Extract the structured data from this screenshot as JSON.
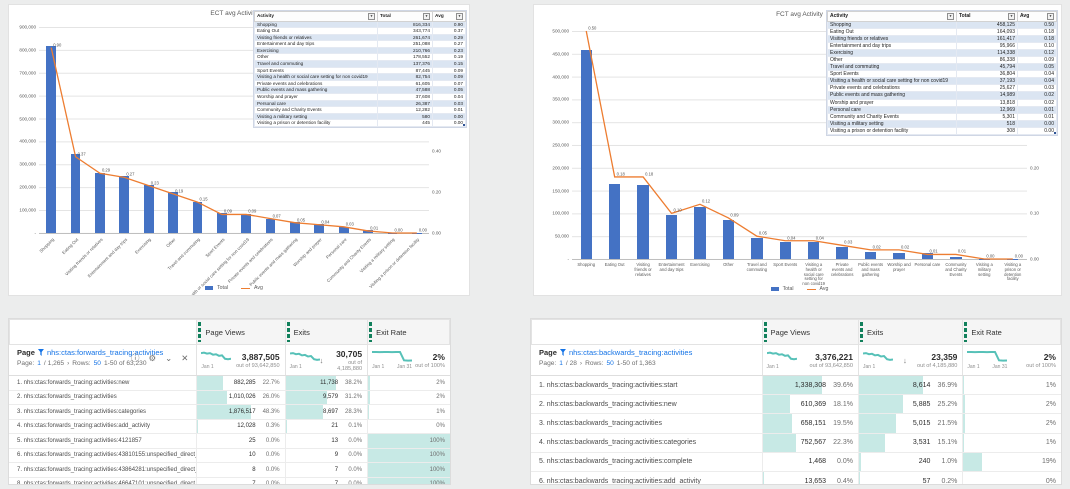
{
  "chart_data": [
    {
      "type": "bar",
      "title": "ECT avg Activity",
      "categories": [
        "Shopping",
        "Eating Out",
        "Visiting friends or relatives",
        "Entertainment and day trips",
        "Exercising",
        "Other",
        "Travel and commuting",
        "Sport Events",
        "Visiting a health or social care setting for non covid19",
        "Private events and celebrations",
        "Public events and mass gathering",
        "Worship and prayer",
        "Personal care",
        "Community and Charity Events",
        "Visiting a military setting",
        "Visiting a prison or detention facility"
      ],
      "series": [
        {
          "name": "Total",
          "type": "bar",
          "values": [
            816334,
            343774,
            261674,
            251088,
            210766,
            178552,
            137376,
            87445,
            82754,
            61605,
            47588,
            37608,
            26387,
            12282,
            580,
            445
          ]
        },
        {
          "name": "Avg",
          "type": "line",
          "values": [
            0.9,
            0.37,
            0.29,
            0.27,
            0.23,
            0.19,
            0.15,
            0.09,
            0.09,
            0.07,
            0.05,
            0.04,
            0.03,
            0.01,
            0.0,
            0.0
          ]
        }
      ],
      "ylim": [
        0,
        900000
      ],
      "y2lim": [
        0,
        1.0
      ],
      "y_ticks": [
        "900,000",
        "800,000",
        "700,000",
        "600,000",
        "500,000",
        "400,000",
        "300,000",
        "200,000",
        "100,000",
        "-"
      ],
      "y2_ticks": [
        "1.00",
        "0.80",
        "0.60",
        "0.40",
        "0.20",
        "0.00"
      ],
      "grid": true,
      "legend_position": "bottom",
      "x_rotate": true,
      "table_headers": [
        "Activity",
        "Total",
        "Avg"
      ]
    },
    {
      "type": "bar",
      "title": "FCT avg Activity",
      "categories": [
        "Shopping",
        "Eating Out",
        "Visiting friends or relatives",
        "Entertainment and day trips",
        "Exercising",
        "Other",
        "Travel and commuting",
        "Sport Events",
        "Visiting a health or social care setting for non covid19",
        "Private events and celebrations",
        "Public events and mass gathering",
        "Worship and prayer",
        "Personal care",
        "Community and Charity Events",
        "Visiting a military setting",
        "Visiting a prison or detention facility"
      ],
      "series": [
        {
          "name": "Total",
          "type": "bar",
          "values": [
            458125,
            164093,
            161417,
            95966,
            114338,
            86338,
            45794,
            36804,
            37193,
            25627,
            14989,
            13818,
            12969,
            5301,
            518,
            308
          ]
        },
        {
          "name": "Avg",
          "type": "line",
          "values": [
            0.5,
            0.18,
            0.18,
            0.1,
            0.12,
            0.09,
            0.05,
            0.04,
            0.04,
            0.03,
            0.02,
            0.02,
            0.01,
            0.01,
            0.0,
            0.0
          ]
        }
      ],
      "ylim": [
        0,
        500000
      ],
      "y2lim": [
        0,
        0.5
      ],
      "y_ticks": [
        "500,000",
        "450,000",
        "400,000",
        "350,000",
        "300,000",
        "250,000",
        "200,000",
        "150,000",
        "100,000",
        "50,000",
        "-"
      ],
      "y2_ticks": [
        "0.50",
        "0.40",
        "0.30",
        "0.20",
        "0.10",
        "0.00"
      ],
      "grid": true,
      "legend_position": "bottom",
      "x_rotate": false,
      "table_headers": [
        "Activity",
        "Total",
        "Avg"
      ]
    }
  ],
  "aa_tables": [
    {
      "page_label": "Page",
      "page_link": "nhs:ctas:forwards_tracing:activities",
      "pagination": {
        "label": "Page:",
        "num": "1",
        "total": "/ 1,265",
        "arrow": "›",
        "rows_label": "Rows:",
        "rows_num": "50",
        "range": "1-50 of 63,230"
      },
      "icons": {
        "info": "ⓘ",
        "gear": "⚙",
        "chevron": "⌄",
        "close": "✕"
      },
      "columns": [
        {
          "label": "Page Views",
          "total": "3,887,505",
          "out_of": "out of 93,642,850",
          "dates": [
            "Jan 1"
          ],
          "sorted": false,
          "spark": [
            8,
            8.4,
            7.6,
            8,
            6.6,
            7,
            5.6,
            6,
            3,
            2.6,
            3
          ]
        },
        {
          "label": "Exits",
          "total": "30,705",
          "out_of": "out of 4,185,880",
          "dates": [
            "Jan 1"
          ],
          "sorted": true,
          "spark": [
            7.6,
            8,
            7,
            7.4,
            6,
            6.4,
            5,
            5.4,
            2.6,
            2,
            2.4
          ]
        },
        {
          "label": "Exit Rate",
          "total": "2%",
          "out_of": "out of 100%",
          "dates": [
            "Jan 1",
            "Jan 31"
          ],
          "sorted": false,
          "spark": [
            9,
            9,
            8.9,
            9,
            9,
            8.9,
            9,
            9,
            1.6,
            1.4,
            1.5
          ]
        }
      ],
      "rows": [
        {
          "name": "1. nhs:ctas:forwards_tracing:activities:new",
          "pv": "882,285",
          "pv_pct": "22.7%",
          "ex": "11,738",
          "ex_pct": "38.2%",
          "er": "2%"
        },
        {
          "name": "2. nhs:ctas:forwards_tracing:activities",
          "pv": "1,010,026",
          "pv_pct": "26.0%",
          "ex": "9,579",
          "ex_pct": "31.2%",
          "er": "2%"
        },
        {
          "name": "3. nhs:ctas:forwards_tracing:activities:categories",
          "pv": "1,876,517",
          "pv_pct": "48.3%",
          "ex": "8,697",
          "ex_pct": "28.3%",
          "er": "1%"
        },
        {
          "name": "4. nhs:ctas:forwards_tracing:activities:add_activity",
          "pv": "12,028",
          "pv_pct": "0.3%",
          "ex": "21",
          "ex_pct": "0.1%",
          "er": "0%"
        },
        {
          "name": "5. nhs:ctas:forwards_tracing:activities:4121857",
          "pv": "25",
          "pv_pct": "0.0%",
          "ex": "13",
          "ex_pct": "0.0%",
          "er": "100%"
        },
        {
          "name": "6. nhs:ctas:forwards_tracing:activities:43810155:unspecified_direct_contacts",
          "pv": "10",
          "pv_pct": "0.0%",
          "ex": "9",
          "ex_pct": "0.0%",
          "er": "100%"
        },
        {
          "name": "7. nhs:ctas:forwards_tracing:activities:43864281:unspecified_direct_conta..",
          "pv": "8",
          "pv_pct": "0.0%",
          "ex": "7",
          "ex_pct": "0.0%",
          "er": "100%"
        },
        {
          "name": "8. nhs:ctas:forwards_tracing:activities:46647101:unspecified_direct_conta..",
          "pv": "7",
          "pv_pct": "0.0%",
          "ex": "7",
          "ex_pct": "0.0%",
          "er": "100%"
        }
      ]
    },
    {
      "page_label": "Page",
      "page_link": "nhs:ctas:backwards_tracing:activities",
      "pagination": {
        "label": "Page:",
        "num": "1",
        "total": "/ 28",
        "arrow": "›",
        "rows_label": "Rows:",
        "rows_num": "50",
        "range": "1-50 of 1,363"
      },
      "columns": [
        {
          "label": "Page Views",
          "total": "3,376,221",
          "out_of": "out of 93,642,850",
          "dates": [
            "Jan 1"
          ],
          "sorted": false,
          "spark": [
            8,
            8.4,
            7.6,
            8,
            6.6,
            7,
            5.6,
            6,
            3,
            2.6,
            3
          ]
        },
        {
          "label": "Exits",
          "total": "23,359",
          "out_of": "out of 4,185,880",
          "dates": [
            "Jan 1"
          ],
          "sorted": true,
          "spark": [
            7.6,
            8,
            7,
            7.4,
            6,
            6.4,
            5,
            5.4,
            2.6,
            2,
            2.4
          ]
        },
        {
          "label": "Exit Rate",
          "total": "2%",
          "out_of": "out of 100%",
          "dates": [
            "Jan 1",
            "Jan 31"
          ],
          "sorted": false,
          "spark": [
            9,
            9,
            8.9,
            9,
            9,
            8.9,
            9,
            9,
            1.6,
            1.4,
            1.5
          ]
        }
      ],
      "rows": [
        {
          "name": "1. nhs:ctas:backwards_tracing:activities:start",
          "pv": "1,338,308",
          "pv_pct": "39.6%",
          "ex": "8,614",
          "ex_pct": "36.9%",
          "er": "1%"
        },
        {
          "name": "2. nhs:ctas:backwards_tracing:activities:new",
          "pv": "610,369",
          "pv_pct": "18.1%",
          "ex": "5,885",
          "ex_pct": "25.2%",
          "er": "2%"
        },
        {
          "name": "3. nhs:ctas:backwards_tracing:activities",
          "pv": "658,151",
          "pv_pct": "19.5%",
          "ex": "5,015",
          "ex_pct": "21.5%",
          "er": "2%"
        },
        {
          "name": "4. nhs:ctas:backwards_tracing:activities:categories",
          "pv": "752,567",
          "pv_pct": "22.3%",
          "ex": "3,531",
          "ex_pct": "15.1%",
          "er": "1%"
        },
        {
          "name": "5. nhs:ctas:backwards_tracing:activities:complete",
          "pv": "1,468",
          "pv_pct": "0.0%",
          "ex": "240",
          "ex_pct": "1.0%",
          "er": "19%"
        },
        {
          "name": "6. nhs:ctas:backwards_tracing:activities:add_activity",
          "pv": "13,653",
          "pv_pct": "0.4%",
          "ex": "57",
          "ex_pct": "0.2%",
          "er": "0%"
        }
      ]
    }
  ],
  "colors": {
    "bar_blue": "#4472c4",
    "line_orange": "#ed7d31",
    "teal_bar": "#c7e9e5",
    "spark_teal": "#57c1b8",
    "green_accent": "#12805c",
    "link_blue": "#1473e6"
  }
}
